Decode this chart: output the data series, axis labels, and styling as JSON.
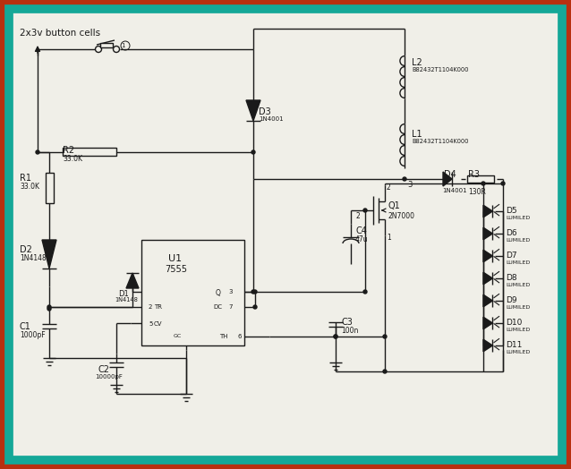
{
  "bg": "#f0efe8",
  "border_outer": "#b83010",
  "border_inner": "#15a898",
  "lc": "#1a1a1a",
  "title": "2x3v button cells",
  "R1_val": "33.0K",
  "R2_val": "33.0K",
  "R3_val": "130R",
  "C1_val": "1000pF",
  "C2_val": "10000pF",
  "C3_val": "100n",
  "C4_val": "47u",
  "D1_val": "1N4148",
  "D2_val": "1N4148",
  "D3_val": "1N4001",
  "D4_val": "1N4001",
  "L1_val": "B82432T1104K000",
  "L2_val": "B82432T1104K000",
  "Q1_val": "2N7000",
  "U1_val": "7555",
  "led_labels": [
    "D5",
    "D6",
    "D7",
    "D8",
    "D9",
    "D10",
    "D11"
  ],
  "led_val": "LUMILED"
}
